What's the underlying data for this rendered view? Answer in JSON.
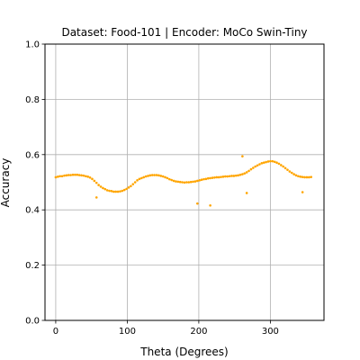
{
  "chart_data": {
    "type": "scatter",
    "title": "Dataset: Food-101 | Encoder: MoCo Swin-Tiny",
    "xlabel": "Theta (Degrees)",
    "ylabel": "Accuracy",
    "xlim": [
      -15,
      375
    ],
    "ylim": [
      0,
      1
    ],
    "xticks": [
      0,
      100,
      200,
      300
    ],
    "yticks": [
      0.0,
      0.2,
      0.4,
      0.6,
      0.8,
      1.0
    ],
    "xtick_labels": [
      "0",
      "100",
      "200",
      "300"
    ],
    "ytick_labels": [
      "0.0",
      "0.2",
      "0.4",
      "0.6",
      "0.8",
      "1.0"
    ],
    "grid": true,
    "color": "#FFA500",
    "series": [
      {
        "x": [
          0,
          3,
          6,
          9,
          12,
          15,
          18,
          21,
          24,
          27,
          30,
          33,
          36,
          39,
          42,
          45,
          48,
          51,
          54,
          57,
          60,
          63,
          66,
          69,
          72,
          75,
          78,
          81,
          84,
          87,
          90,
          93,
          96,
          99,
          102,
          105,
          108,
          111,
          114,
          117,
          120,
          123,
          126,
          129,
          132,
          135,
          138,
          141,
          144,
          147,
          150,
          153,
          156,
          159,
          162,
          165,
          168,
          171,
          174,
          177,
          180,
          183,
          186,
          189,
          192,
          195,
          198,
          201,
          204,
          207,
          210,
          213,
          216,
          219,
          222,
          225,
          228,
          231,
          234,
          237,
          240,
          243,
          246,
          249,
          252,
          255,
          258,
          261,
          264,
          267,
          270,
          273,
          276,
          279,
          282,
          285,
          288,
          291,
          294,
          297,
          300,
          303,
          306,
          309,
          312,
          315,
          318,
          321,
          324,
          327,
          330,
          333,
          336,
          339,
          342,
          345,
          348,
          351,
          354,
          357,
          57,
          198,
          216,
          261,
          267,
          345
        ],
        "y": [
          0.518,
          0.52,
          0.522,
          0.522,
          0.524,
          0.525,
          0.526,
          0.526,
          0.527,
          0.527,
          0.527,
          0.526,
          0.525,
          0.524,
          0.522,
          0.52,
          0.517,
          0.512,
          0.505,
          0.498,
          0.49,
          0.484,
          0.479,
          0.475,
          0.471,
          0.469,
          0.468,
          0.466,
          0.466,
          0.466,
          0.467,
          0.469,
          0.472,
          0.476,
          0.481,
          0.486,
          0.493,
          0.5,
          0.507,
          0.512,
          0.515,
          0.518,
          0.521,
          0.523,
          0.525,
          0.526,
          0.526,
          0.526,
          0.525,
          0.523,
          0.521,
          0.518,
          0.515,
          0.511,
          0.508,
          0.505,
          0.503,
          0.502,
          0.501,
          0.5,
          0.499,
          0.5,
          0.5,
          0.501,
          0.502,
          0.503,
          0.505,
          0.507,
          0.509,
          0.511,
          0.512,
          0.514,
          0.515,
          0.516,
          0.517,
          0.518,
          0.518,
          0.519,
          0.52,
          0.521,
          0.521,
          0.522,
          0.523,
          0.523,
          0.524,
          0.525,
          0.527,
          0.529,
          0.532,
          0.536,
          0.541,
          0.547,
          0.552,
          0.557,
          0.561,
          0.565,
          0.569,
          0.571,
          0.573,
          0.575,
          0.576,
          0.576,
          0.574,
          0.571,
          0.567,
          0.562,
          0.557,
          0.551,
          0.545,
          0.539,
          0.534,
          0.529,
          0.525,
          0.522,
          0.52,
          0.519,
          0.518,
          0.518,
          0.518,
          0.519,
          0.445,
          0.423,
          0.416,
          0.594,
          0.461,
          0.464
        ]
      }
    ]
  }
}
